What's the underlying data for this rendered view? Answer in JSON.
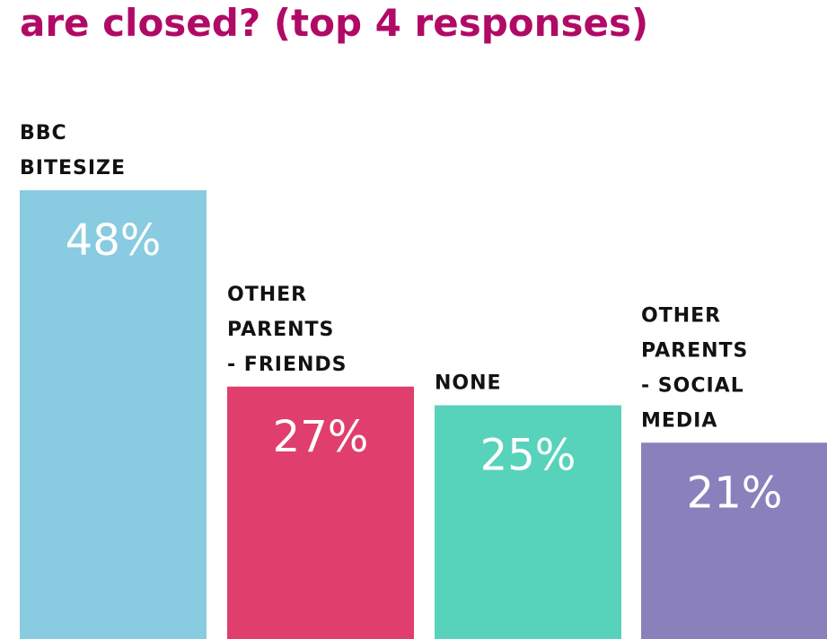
{
  "chart_data": {
    "type": "bar",
    "title": "are closed? (top 4 responses)",
    "categories": [
      [
        "BBC",
        "BITESIZE"
      ],
      [
        "OTHER",
        "PARENTS",
        "- FRIENDS"
      ],
      [
        "NONE"
      ],
      [
        "OTHER",
        "PARENTS",
        "- SOCIAL",
        "MEDIA"
      ]
    ],
    "values": [
      48,
      27,
      25,
      21
    ],
    "value_labels": [
      "48%",
      "27%",
      "25%",
      "21%"
    ],
    "colors": [
      "#89cbe0",
      "#e03e6c",
      "#58d3bb",
      "#8a80bb"
    ],
    "title_color": "#b10a66",
    "ylim": [
      0,
      48
    ],
    "grid": false,
    "legend": "none"
  }
}
